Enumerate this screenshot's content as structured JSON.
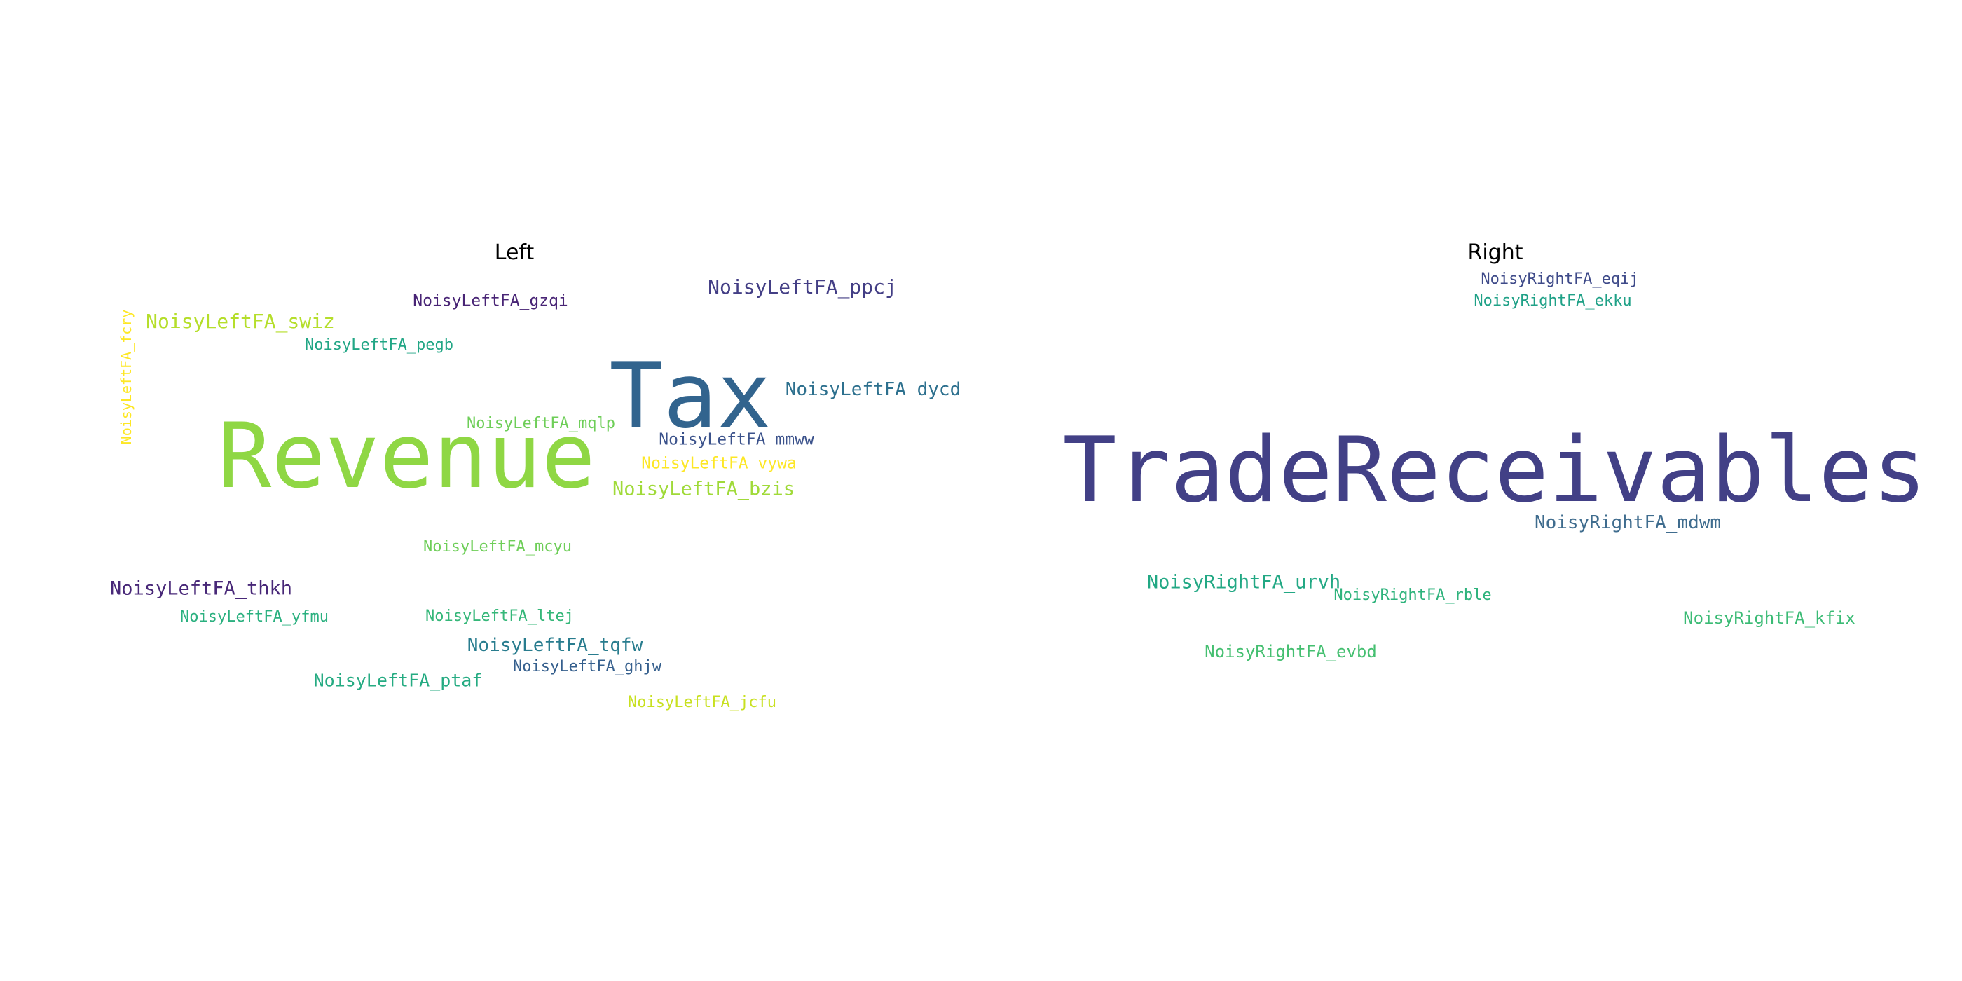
{
  "left": {
    "title": "Left",
    "words": {
      "revenue": {
        "text": "Revenue",
        "color": "#8fd744"
      },
      "tax": {
        "text": "Tax",
        "color": "#32648e"
      },
      "ppcj": {
        "text": "NoisyLeftFA_ppcj",
        "color": "#433e85"
      },
      "swiz": {
        "text": "NoisyLeftFA_swiz",
        "color": "#b5de2b"
      },
      "gzqi": {
        "text": "NoisyLeftFA_gzqi",
        "color": "#482475"
      },
      "pegb": {
        "text": "NoisyLeftFA_pegb",
        "color": "#21a685"
      },
      "dycd": {
        "text": "NoisyLeftFA_dycd",
        "color": "#2d708e"
      },
      "mqlp": {
        "text": "NoisyLeftFA_mqlp",
        "color": "#6ece58"
      },
      "mmww": {
        "text": "NoisyLeftFA_mmww",
        "color": "#3b528b"
      },
      "vywa": {
        "text": "NoisyLeftFA_vywa",
        "color": "#fde725"
      },
      "bzis": {
        "text": "NoisyLeftFA_bzis",
        "color": "#a0da39"
      },
      "fcry": {
        "text": "NoisyLeftFA_fcry",
        "color": "#fde725"
      },
      "mcyu": {
        "text": "NoisyLeftFA_mcyu",
        "color": "#6ece58"
      },
      "thkh": {
        "text": "NoisyLeftFA_thkh",
        "color": "#482878"
      },
      "yfmu": {
        "text": "NoisyLeftFA_yfmu",
        "color": "#2ab07f"
      },
      "ltej": {
        "text": "NoisyLeftFA_ltej",
        "color": "#35b779"
      },
      "tqfw": {
        "text": "NoisyLeftFA_tqfw",
        "color": "#287c8e"
      },
      "ghjw": {
        "text": "NoisyLeftFA_ghjw",
        "color": "#355f8d"
      },
      "ptaf": {
        "text": "NoisyLeftFA_ptaf",
        "color": "#25ab82"
      },
      "jcfu": {
        "text": "NoisyLeftFA_jcfu",
        "color": "#c8e020"
      }
    }
  },
  "right": {
    "title": "Right",
    "words": {
      "trade": {
        "text": "TradeReceivables",
        "color": "#424086"
      },
      "eqij": {
        "text": "NoisyRightFA_eqij",
        "color": "#3e4a89"
      },
      "ekku": {
        "text": "NoisyRightFA_ekku",
        "color": "#1fa187"
      },
      "mdwm": {
        "text": "NoisyRightFA_mdwm",
        "color": "#3f6c8e"
      },
      "urvh": {
        "text": "NoisyRightFA_urvh",
        "color": "#22a884"
      },
      "rble": {
        "text": "NoisyRightFA_rble",
        "color": "#2eb37c"
      },
      "kfix": {
        "text": "NoisyRightFA_kfix",
        "color": "#3bbb75"
      },
      "evbd": {
        "text": "NoisyRightFA_evbd",
        "color": "#44bf70"
      }
    }
  }
}
